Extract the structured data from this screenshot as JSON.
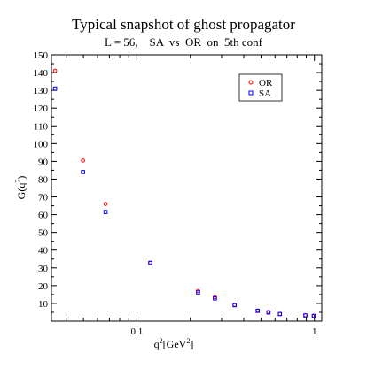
{
  "chart_data": {
    "type": "scatter",
    "title": "Typical snapshot of ghost propagator",
    "subtitle": "L = 56,    SA  vs  OR  on  5th conf",
    "ylabel_main": "G(q",
    "ylabel_sup": "2",
    "ylabel_close": ")",
    "xlabel_main": "q",
    "xlabel_sup": "2",
    "xlabel_unit": "[GeV",
    "xlabel_unit_sup": "2",
    "xlabel_close": "]",
    "x_scale": "log",
    "xlim": [
      0.033,
      1.1
    ],
    "ylim": [
      0,
      150
    ],
    "y_ticks": [
      10,
      20,
      30,
      40,
      50,
      60,
      70,
      80,
      90,
      100,
      110,
      120,
      130,
      140,
      150
    ],
    "x_major_ticks": [
      0.1,
      1
    ],
    "x_tick_labels": [
      "0.1",
      "1"
    ],
    "grid": false,
    "legend_position": "top-right",
    "series": [
      {
        "name": "OR",
        "color": "#ff0000",
        "marker": "circle",
        "points": [
          [
            0.0346,
            141
          ],
          [
            0.0497,
            90.5
          ],
          [
            0.0666,
            66
          ],
          [
            0.119,
            33
          ],
          [
            0.221,
            17
          ],
          [
            0.275,
            13.5
          ],
          [
            0.355,
            9.2
          ],
          [
            0.479,
            6
          ],
          [
            0.551,
            5.2
          ],
          [
            0.639,
            4.1
          ],
          [
            0.889,
            3.4
          ],
          [
            0.992,
            3.1
          ]
        ]
      },
      {
        "name": "SA",
        "color": "#0000ff",
        "marker": "square",
        "points": [
          [
            0.0346,
            131
          ],
          [
            0.0497,
            84
          ],
          [
            0.0666,
            61.5
          ],
          [
            0.119,
            32.8
          ],
          [
            0.221,
            16.2
          ],
          [
            0.275,
            12.8
          ],
          [
            0.355,
            9.0
          ],
          [
            0.479,
            5.8
          ],
          [
            0.551,
            4.9
          ],
          [
            0.639,
            4.0
          ],
          [
            0.889,
            3.2
          ],
          [
            0.992,
            2.9
          ]
        ]
      }
    ]
  }
}
